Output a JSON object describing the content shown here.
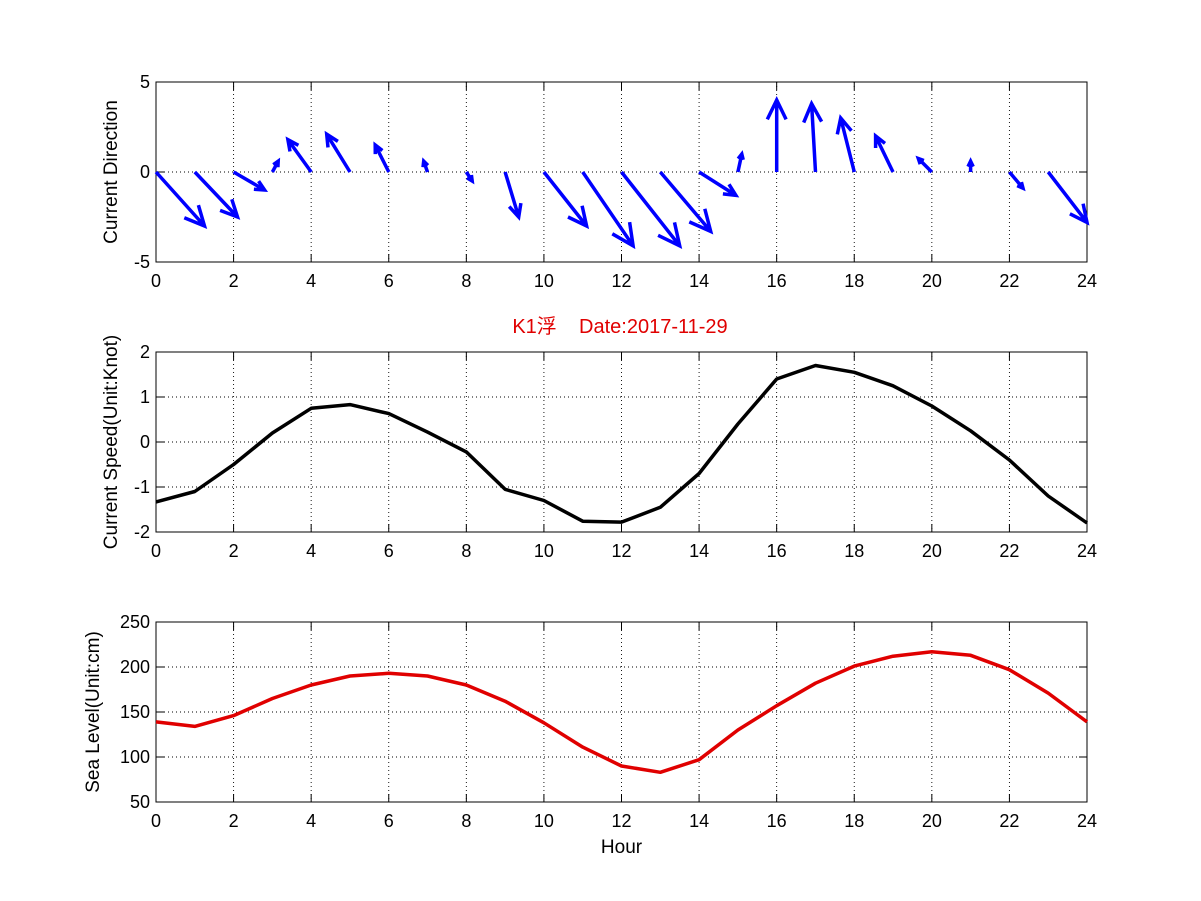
{
  "figure": {
    "title": "K1浮    Date:2017-11-29",
    "title_color": "#e00000"
  },
  "chart_data": [
    {
      "type": "quiver",
      "ylabel": "Current Direction",
      "xlim": [
        0,
        24
      ],
      "ylim": [
        -5,
        5
      ],
      "xticks": [
        0,
        2,
        4,
        6,
        8,
        10,
        12,
        14,
        16,
        18,
        20,
        22,
        24
      ],
      "yticks": [
        -5,
        0,
        5
      ],
      "grid": true,
      "color": "#0000ff",
      "x": [
        0,
        1,
        2,
        3,
        4,
        5,
        6,
        7,
        8,
        9,
        10,
        11,
        12,
        13,
        14,
        15,
        16,
        17,
        18,
        19,
        20,
        21,
        22,
        23
      ],
      "u": [
        1.25,
        1.1,
        0.8,
        0.15,
        -0.6,
        -0.6,
        -0.35,
        -0.1,
        0.15,
        0.35,
        1.1,
        1.3,
        1.5,
        1.3,
        0.95,
        0.1,
        0.0,
        -0.1,
        -0.35,
        -0.45,
        -0.35,
        0.0,
        0.35,
        1.0
      ],
      "v": [
        -3.0,
        -2.5,
        -1.0,
        0.6,
        1.8,
        2.1,
        1.5,
        0.6,
        -0.5,
        -2.5,
        -3.0,
        -4.1,
        -4.1,
        -3.3,
        -1.3,
        1.0,
        4.0,
        3.8,
        3.0,
        2.0,
        0.75,
        0.6,
        -0.9,
        -2.8
      ]
    },
    {
      "type": "line",
      "ylabel": "Current Speed(Unit:Knot)",
      "xlim": [
        0,
        24
      ],
      "ylim": [
        -2,
        2
      ],
      "xticks": [
        0,
        2,
        4,
        6,
        8,
        10,
        12,
        14,
        16,
        18,
        20,
        22,
        24
      ],
      "yticks": [
        -2,
        -1,
        0,
        1,
        2
      ],
      "grid": true,
      "color": "#000000",
      "x": [
        0,
        1,
        2,
        3,
        4,
        5,
        6,
        7,
        8,
        9,
        10,
        11,
        12,
        13,
        14,
        15,
        16,
        17,
        18,
        19,
        20,
        21,
        22,
        23,
        24
      ],
      "y": [
        -1.33,
        -1.1,
        -0.5,
        0.2,
        0.75,
        0.83,
        0.63,
        0.22,
        -0.22,
        -1.05,
        -1.3,
        -1.76,
        -1.78,
        -1.45,
        -0.7,
        0.4,
        1.4,
        1.7,
        1.55,
        1.25,
        0.8,
        0.25,
        -0.4,
        -1.2,
        -1.8
      ]
    },
    {
      "type": "line",
      "ylabel": "Sea Level(Unit:cm)",
      "xlabel": "Hour",
      "xlim": [
        0,
        24
      ],
      "ylim": [
        50,
        250
      ],
      "xticks": [
        0,
        2,
        4,
        6,
        8,
        10,
        12,
        14,
        16,
        18,
        20,
        22,
        24
      ],
      "yticks": [
        50,
        100,
        150,
        200,
        250
      ],
      "grid": true,
      "color": "#e00000",
      "x": [
        0,
        1,
        2,
        3,
        4,
        5,
        6,
        7,
        8,
        9,
        10,
        11,
        12,
        13,
        14,
        15,
        16,
        17,
        18,
        19,
        20,
        21,
        22,
        23,
        24
      ],
      "y": [
        139,
        134,
        146,
        165,
        180,
        190,
        193,
        190,
        180,
        162,
        138,
        111,
        90,
        83,
        97,
        130,
        157,
        182,
        201,
        212,
        217,
        213,
        197,
        171,
        139
      ]
    }
  ]
}
